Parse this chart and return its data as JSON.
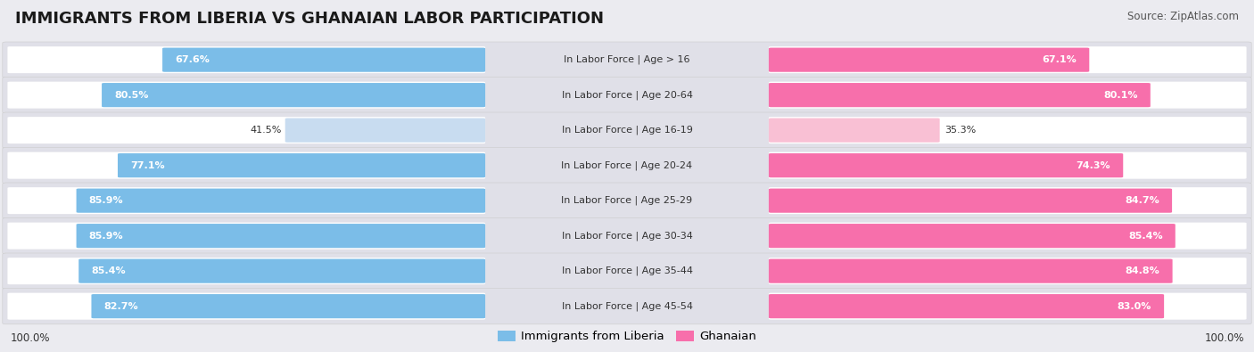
{
  "title": "IMMIGRANTS FROM LIBERIA VS GHANAIAN LABOR PARTICIPATION",
  "source": "Source: ZipAtlas.com",
  "categories": [
    "In Labor Force | Age > 16",
    "In Labor Force | Age 20-64",
    "In Labor Force | Age 16-19",
    "In Labor Force | Age 20-24",
    "In Labor Force | Age 25-29",
    "In Labor Force | Age 30-34",
    "In Labor Force | Age 35-44",
    "In Labor Force | Age 45-54"
  ],
  "liberia_values": [
    67.6,
    80.5,
    41.5,
    77.1,
    85.9,
    85.9,
    85.4,
    82.7
  ],
  "ghanaian_values": [
    67.1,
    80.1,
    35.3,
    74.3,
    84.7,
    85.4,
    84.8,
    83.0
  ],
  "liberia_color_full": "#7BBDE8",
  "liberia_color_light": "#C8DCF0",
  "ghanaian_color_full": "#F76FAB",
  "ghanaian_color_light": "#F9C0D4",
  "background_color": "#EBEBF0",
  "row_bg_color": "#E0E0E8",
  "threshold": 60,
  "max_value": 100.0,
  "legend_liberia": "Immigrants from Liberia",
  "legend_ghanaian": "Ghanaian",
  "title_fontsize": 13,
  "source_fontsize": 8.5,
  "label_fontsize": 8,
  "value_fontsize": 8
}
